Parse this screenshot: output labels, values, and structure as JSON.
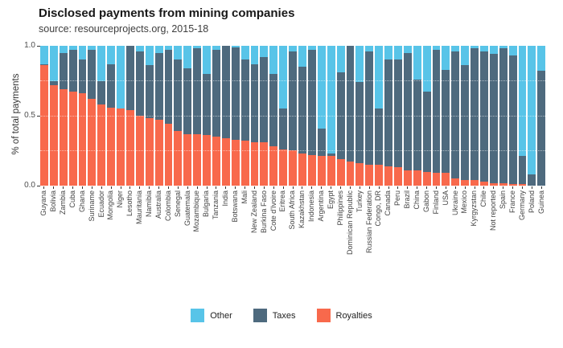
{
  "title": "Disclosed payments from mining companies",
  "subtitle": "source: resourceprojects.org, 2015-18",
  "y_axis": {
    "label": "% of total payments",
    "ticks": [
      "1.0",
      "0.5",
      "0.0"
    ]
  },
  "legend": [
    {
      "label": "Other",
      "color": "#58c4e8"
    },
    {
      "label": "Taxes",
      "color": "#4e6a7e"
    },
    {
      "label": "Royalties",
      "color": "#f8694c"
    }
  ],
  "colors": {
    "other": "#58c4e8",
    "taxes": "#4e6a7e",
    "royalties": "#f8694c",
    "axis_text": "#4d4d4d"
  },
  "chart_data": {
    "type": "bar",
    "stacked": true,
    "title": "Disclosed payments from mining companies",
    "subtitle": "source: resourceprojects.org, 2015-18",
    "xlabel": "",
    "ylabel": "% of total payments",
    "ylim": [
      0,
      1
    ],
    "yticks": [
      0.0,
      0.5,
      1.0
    ],
    "gridlines_white_dotted_at": [
      0.25,
      0.5,
      0.75
    ],
    "legend_position": "bottom",
    "categories": [
      "Guyana",
      "Bolivia",
      "Zambia",
      "Cuba",
      "Ghana",
      "Suriname",
      "Ecuador",
      "Mongolia",
      "Niger",
      "Lesotho",
      "Mauritania",
      "Namibia",
      "Australia",
      "Colombia",
      "Senegal",
      "Guatemala",
      "Mozambique",
      "Bulgaria",
      "Tanzania",
      "India",
      "Botswana",
      "Mali",
      "New Zealand",
      "Burkina Faso",
      "Cote d'Ivoire",
      "Eritrea",
      "South Africa",
      "Kazakhstan",
      "Indonesia",
      "Argentina",
      "Egypt",
      "Philippines",
      "Dominican Republic",
      "Turkey",
      "Russian Federation",
      "Congo, DR",
      "Canada",
      "Peru",
      "Brazil",
      "China",
      "Gabon",
      "Finland",
      "USA",
      "Ukraine",
      "Mexico",
      "Kyrgyzstan",
      "Chile",
      "Not reported",
      "Spain",
      "France",
      "Germany",
      "Poland",
      "Guinea"
    ],
    "series": [
      {
        "name": "Royalties",
        "color": "#f8694c",
        "values": [
          0.86,
          0.72,
          0.69,
          0.67,
          0.66,
          0.62,
          0.58,
          0.56,
          0.55,
          0.54,
          0.5,
          0.48,
          0.47,
          0.44,
          0.39,
          0.37,
          0.37,
          0.36,
          0.35,
          0.34,
          0.33,
          0.32,
          0.31,
          0.31,
          0.28,
          0.26,
          0.25,
          0.23,
          0.22,
          0.21,
          0.21,
          0.19,
          0.17,
          0.16,
          0.15,
          0.15,
          0.14,
          0.13,
          0.11,
          0.11,
          0.1,
          0.09,
          0.09,
          0.05,
          0.04,
          0.04,
          0.03,
          0.02,
          0.02,
          0.01,
          0.01,
          0.0,
          0.0
        ]
      },
      {
        "name": "Taxes",
        "color": "#4e6a7e",
        "values": [
          0.01,
          0.03,
          0.26,
          0.3,
          0.24,
          0.35,
          0.17,
          0.31,
          0.0,
          0.46,
          0.46,
          0.38,
          0.48,
          0.53,
          0.51,
          0.47,
          0.61,
          0.44,
          0.62,
          0.66,
          0.66,
          0.58,
          0.56,
          0.61,
          0.52,
          0.29,
          0.71,
          0.62,
          0.75,
          0.2,
          0.02,
          0.62,
          0.83,
          0.58,
          0.81,
          0.4,
          0.76,
          0.77,
          0.84,
          0.65,
          0.57,
          0.88,
          0.74,
          0.91,
          0.82,
          0.94,
          0.93,
          0.92,
          0.96,
          0.92,
          0.2,
          0.08,
          0.82
        ]
      },
      {
        "name": "Other",
        "color": "#58c4e8",
        "values": [
          0.13,
          0.25,
          0.05,
          0.03,
          0.1,
          0.03,
          0.25,
          0.13,
          0.45,
          0.0,
          0.04,
          0.14,
          0.05,
          0.03,
          0.1,
          0.16,
          0.02,
          0.2,
          0.03,
          0.0,
          0.01,
          0.1,
          0.13,
          0.08,
          0.2,
          0.45,
          0.04,
          0.15,
          0.03,
          0.59,
          0.77,
          0.19,
          0.0,
          0.26,
          0.04,
          0.45,
          0.1,
          0.1,
          0.05,
          0.24,
          0.33,
          0.03,
          0.17,
          0.04,
          0.14,
          0.02,
          0.04,
          0.06,
          0.02,
          0.07,
          0.79,
          0.92,
          0.18
        ]
      }
    ]
  }
}
